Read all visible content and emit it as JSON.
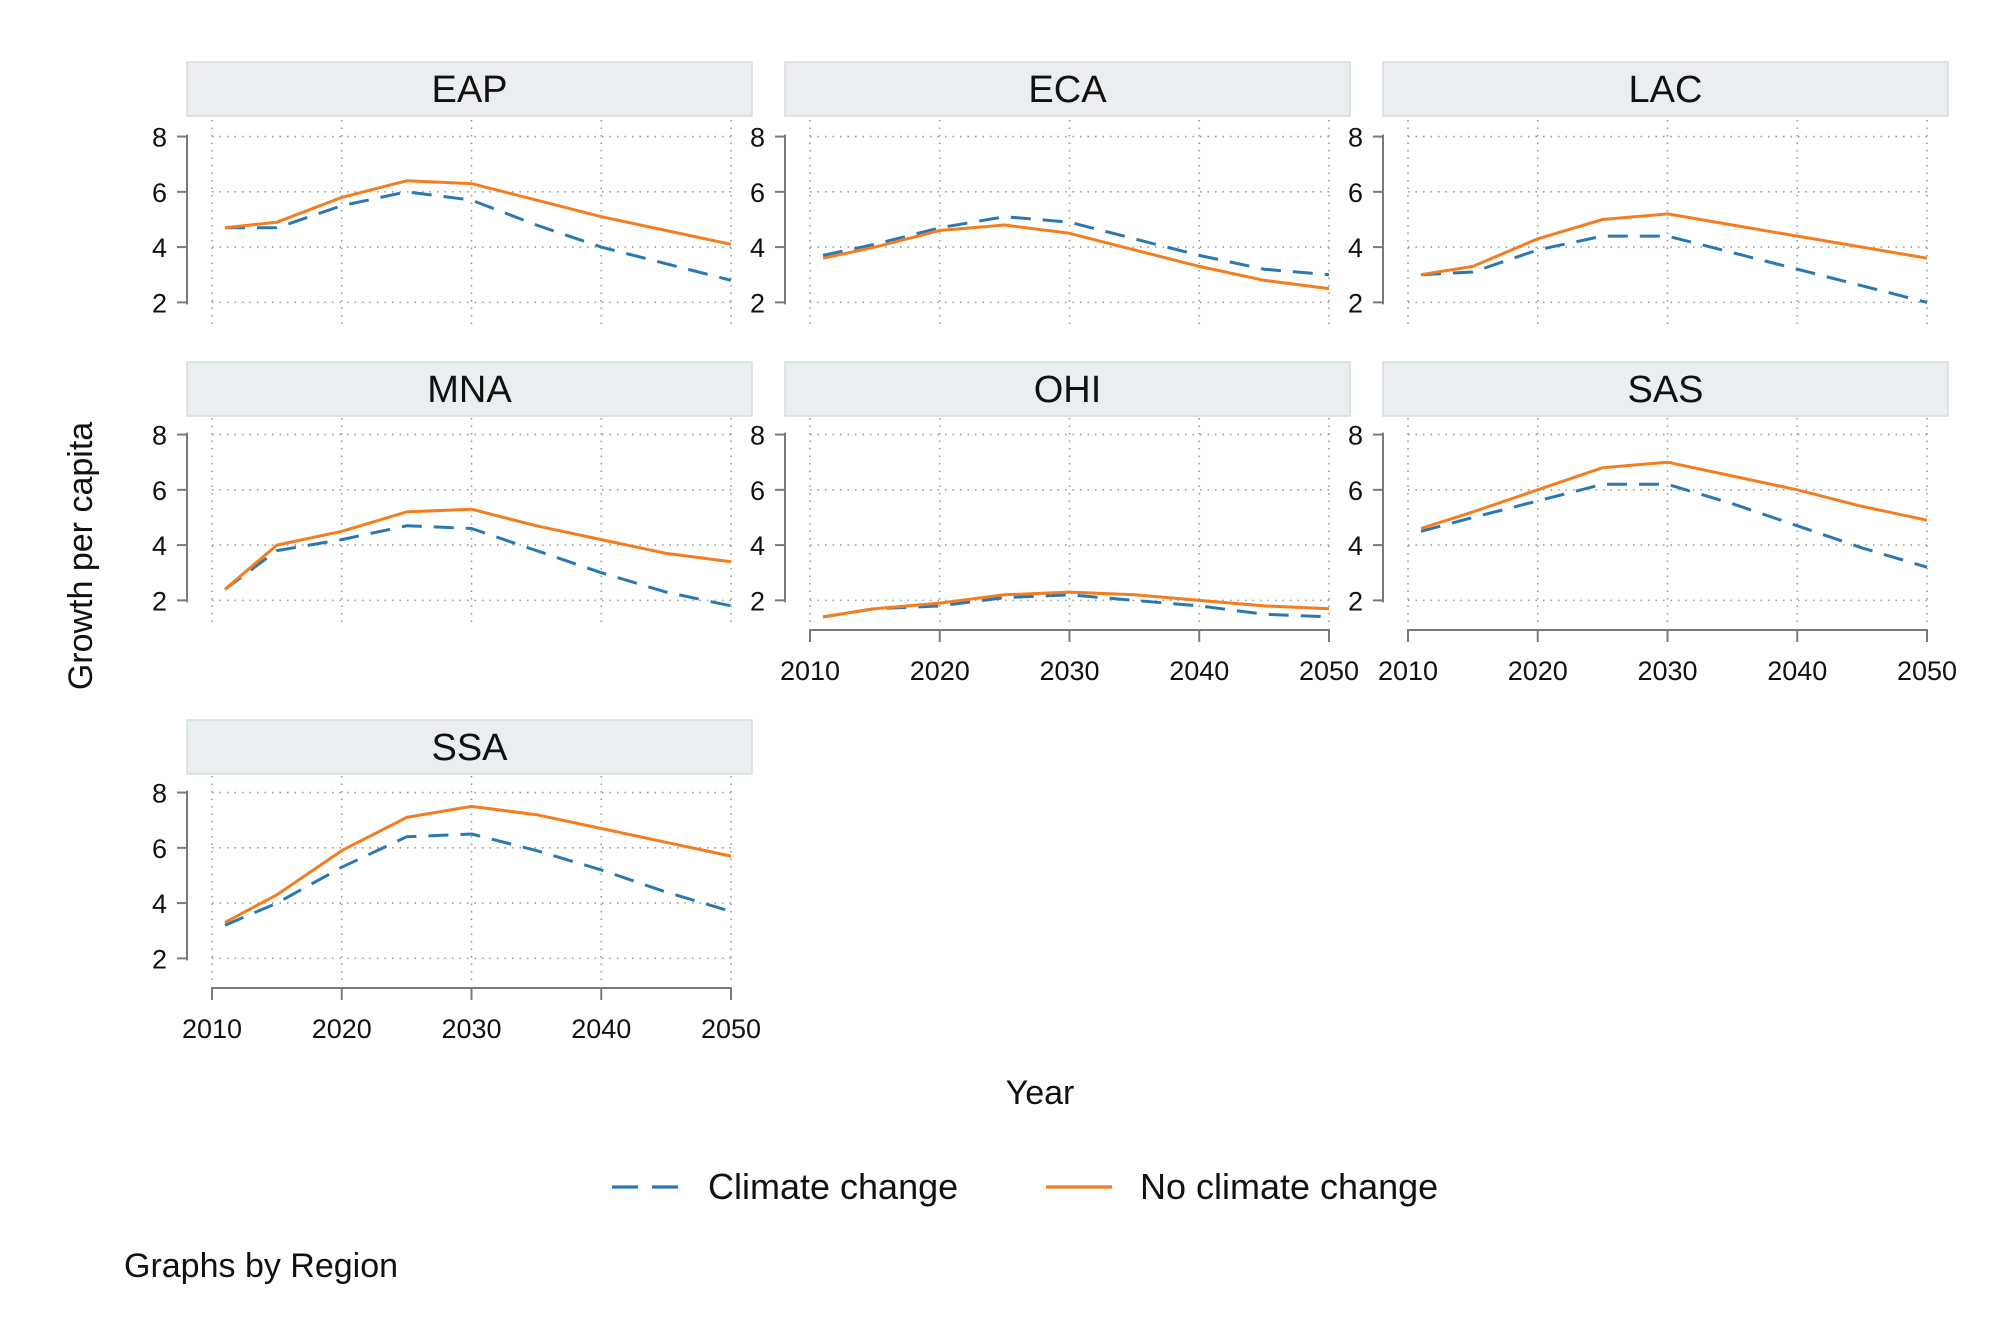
{
  "chart_data": {
    "type": "line",
    "ylabel": "Growth per capita",
    "xlabel": "Year",
    "note": "Graphs by Region",
    "ylim": [
      1,
      8
    ],
    "y_ticks": [
      2,
      4,
      6,
      8
    ],
    "xlim": [
      2010,
      2050
    ],
    "x_ticks": [
      2010,
      2020,
      2030,
      2040,
      2050
    ],
    "x": [
      2011,
      2015,
      2020,
      2025,
      2030,
      2035,
      2040,
      2045,
      2050
    ],
    "legend": {
      "position": "bottom",
      "entries": [
        "Climate change",
        "No climate change"
      ]
    },
    "grid": true,
    "colors": {
      "climate": "#2a78b2",
      "noclimate": "#f47d20"
    },
    "panels": [
      {
        "name": "EAP",
        "series": [
          {
            "name": "Climate change",
            "values": [
              4.7,
              4.7,
              5.5,
              6.0,
              5.7,
              4.8,
              4.0,
              3.4,
              2.8
            ]
          },
          {
            "name": "No climate change",
            "values": [
              4.7,
              4.9,
              5.8,
              6.4,
              6.3,
              5.7,
              5.1,
              4.6,
              4.1
            ]
          }
        ]
      },
      {
        "name": "ECA",
        "series": [
          {
            "name": "Climate change",
            "values": [
              3.7,
              4.1,
              4.7,
              5.1,
              4.9,
              4.3,
              3.7,
              3.2,
              3.0
            ]
          },
          {
            "name": "No climate change",
            "values": [
              3.6,
              4.0,
              4.6,
              4.8,
              4.5,
              3.9,
              3.3,
              2.8,
              2.5
            ]
          }
        ]
      },
      {
        "name": "LAC",
        "series": [
          {
            "name": "Climate change",
            "values": [
              3.0,
              3.1,
              3.9,
              4.4,
              4.4,
              3.8,
              3.2,
              2.6,
              2.0
            ]
          },
          {
            "name": "No climate change",
            "values": [
              3.0,
              3.3,
              4.3,
              5.0,
              5.2,
              4.8,
              4.4,
              4.0,
              3.6
            ]
          }
        ]
      },
      {
        "name": "MNA",
        "series": [
          {
            "name": "Climate change",
            "values": [
              2.4,
              3.8,
              4.2,
              4.7,
              4.6,
              3.8,
              3.0,
              2.3,
              1.8
            ]
          },
          {
            "name": "No climate change",
            "values": [
              2.4,
              4.0,
              4.5,
              5.2,
              5.3,
              4.7,
              4.2,
              3.7,
              3.4
            ]
          }
        ]
      },
      {
        "name": "OHI",
        "series": [
          {
            "name": "Climate change",
            "values": [
              1.4,
              1.7,
              1.8,
              2.1,
              2.2,
              2.0,
              1.8,
              1.5,
              1.4
            ]
          },
          {
            "name": "No climate change",
            "values": [
              1.4,
              1.7,
              1.9,
              2.2,
              2.3,
              2.2,
              2.0,
              1.8,
              1.7
            ]
          }
        ]
      },
      {
        "name": "SAS",
        "series": [
          {
            "name": "Climate change",
            "values": [
              4.5,
              5.0,
              5.6,
              6.2,
              6.2,
              5.5,
              4.7,
              3.9,
              3.2
            ]
          },
          {
            "name": "No climate change",
            "values": [
              4.6,
              5.2,
              6.0,
              6.8,
              7.0,
              6.5,
              6.0,
              5.4,
              4.9
            ]
          }
        ]
      },
      {
        "name": "SSA",
        "series": [
          {
            "name": "Climate change",
            "values": [
              3.2,
              4.0,
              5.3,
              6.4,
              6.5,
              5.9,
              5.2,
              4.4,
              3.7
            ]
          },
          {
            "name": "No climate change",
            "values": [
              3.3,
              4.3,
              5.9,
              7.1,
              7.5,
              7.2,
              6.7,
              6.2,
              5.7
            ]
          }
        ]
      }
    ]
  }
}
